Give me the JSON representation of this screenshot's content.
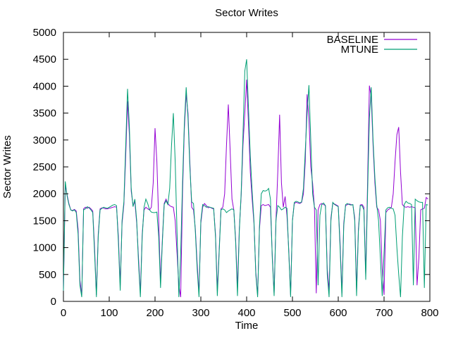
{
  "title": "Sector Writes",
  "chart_data": {
    "type": "line",
    "title": "Sector Writes",
    "xlabel": "Time",
    "ylabel": "Sector Writes",
    "xlim": [
      0,
      800
    ],
    "ylim": [
      0,
      5000
    ],
    "xticks": [
      0,
      100,
      200,
      300,
      400,
      500,
      600,
      700,
      800
    ],
    "yticks": [
      0,
      500,
      1000,
      1500,
      2000,
      2500,
      3000,
      3500,
      4000,
      4500,
      5000
    ],
    "grid": false,
    "legend_position": "top-right-inside",
    "x": [
      0,
      4,
      8,
      12,
      16,
      20,
      24,
      28,
      32,
      36,
      40,
      44,
      48,
      52,
      56,
      60,
      64,
      68,
      72,
      76,
      80,
      84,
      88,
      92,
      96,
      100,
      104,
      108,
      112,
      116,
      120,
      124,
      128,
      132,
      136,
      140,
      144,
      148,
      152,
      156,
      160,
      164,
      168,
      172,
      176,
      180,
      184,
      188,
      192,
      196,
      200,
      204,
      208,
      212,
      216,
      220,
      224,
      228,
      232,
      236,
      240,
      244,
      248,
      252,
      256,
      260,
      264,
      268,
      272,
      276,
      280,
      284,
      288,
      292,
      296,
      300,
      304,
      308,
      312,
      316,
      320,
      324,
      328,
      332,
      336,
      340,
      344,
      348,
      352,
      356,
      360,
      364,
      368,
      372,
      376,
      380,
      384,
      388,
      392,
      396,
      400,
      404,
      408,
      412,
      416,
      420,
      424,
      428,
      432,
      436,
      440,
      444,
      448,
      452,
      456,
      460,
      464,
      468,
      472,
      476,
      480,
      484,
      488,
      492,
      496,
      500,
      504,
      508,
      512,
      516,
      520,
      524,
      528,
      532,
      536,
      540,
      544,
      548,
      552,
      556,
      560,
      564,
      568,
      572,
      576,
      580,
      584,
      588,
      592,
      596,
      600,
      604,
      608,
      612,
      616,
      620,
      624,
      628,
      632,
      636,
      640,
      644,
      648,
      652,
      656,
      660,
      664,
      668,
      672,
      676,
      680,
      684,
      688,
      692,
      696,
      700,
      704,
      708,
      712,
      716,
      720,
      724,
      728,
      732,
      736,
      740,
      744,
      748,
      752,
      756,
      760,
      764,
      768,
      772,
      776,
      780,
      784,
      788,
      792,
      796
    ],
    "series": [
      {
        "name": "BASELINE",
        "color": "#9400d3",
        "values": [
          200,
          2150,
          1980,
          1820,
          1700,
          1690,
          1710,
          1680,
          1350,
          400,
          100,
          1720,
          1750,
          1730,
          1750,
          1720,
          1680,
          1000,
          120,
          1250,
          1720,
          1740,
          1730,
          1720,
          1720,
          1730,
          1740,
          1750,
          1760,
          1750,
          1200,
          300,
          1450,
          1800,
          2700,
          3720,
          3100,
          2050,
          1780,
          1850,
          1450,
          800,
          150,
          1250,
          1700,
          1750,
          1720,
          1700,
          1750,
          2200,
          3220,
          2600,
          1500,
          350,
          1150,
          1820,
          1900,
          1820,
          1780,
          1760,
          1750,
          1500,
          900,
          300,
          80,
          2000,
          3200,
          3850,
          3500,
          2600,
          1750,
          1700,
          1350,
          700,
          150,
          1450,
          1750,
          1820,
          1780,
          1740,
          1750,
          1730,
          1720,
          1250,
          200,
          950,
          1720,
          1750,
          2000,
          2900,
          3660,
          2800,
          1900,
          1700,
          1150,
          250,
          1350,
          1950,
          2900,
          3500,
          4120,
          3300,
          2400,
          1900,
          1450,
          550,
          120,
          1350,
          1780,
          1800,
          1780,
          1790,
          1800,
          1750,
          850,
          150,
          1500,
          2400,
          3470,
          2200,
          1750,
          1950,
          1600,
          950,
          120,
          1500,
          1820,
          1840,
          1830,
          1820,
          1840,
          2000,
          2600,
          3850,
          3400,
          2500,
          2200,
          1750,
          150,
          1700,
          1800,
          1820,
          1800,
          1780,
          600,
          200,
          1550,
          1820,
          1810,
          1790,
          1770,
          1100,
          150,
          1450,
          1780,
          1800,
          1810,
          1800,
          1790,
          1550,
          200,
          1350,
          1790,
          1800,
          1750,
          500,
          2200,
          4010,
          3800,
          2900,
          2200,
          1750,
          1700,
          1500,
          600,
          120,
          1650,
          1700,
          1720,
          1750,
          2000,
          2600,
          3100,
          3240,
          2400,
          1800,
          1760,
          1750,
          1760,
          1750,
          1760,
          1750,
          1740,
          300,
          800,
          1700,
          1720,
          1730,
          1930,
          1900
        ]
      },
      {
        "name": "MTUNE",
        "color": "#009e73",
        "values": [
          200,
          2230,
          1960,
          1800,
          1700,
          1680,
          1700,
          1650,
          1250,
          300,
          80,
          1700,
          1720,
          1760,
          1740,
          1700,
          1650,
          900,
          80,
          1200,
          1700,
          1730,
          1750,
          1740,
          1730,
          1750,
          1770,
          1790,
          1800,
          1780,
          1100,
          200,
          1500,
          1850,
          2900,
          3950,
          3250,
          2100,
          1760,
          1900,
          1500,
          700,
          80,
          1200,
          1750,
          1900,
          1820,
          1700,
          1660,
          1650,
          1650,
          1660,
          1200,
          250,
          1100,
          1800,
          1870,
          1800,
          2100,
          2900,
          3500,
          2600,
          1300,
          80,
          900,
          2200,
          3300,
          3980,
          3400,
          2500,
          1850,
          1820,
          1300,
          600,
          80,
          1500,
          1800,
          1780,
          1750,
          1760,
          1750,
          1740,
          1730,
          1200,
          100,
          900,
          1700,
          1720,
          1700,
          1650,
          1680,
          1700,
          1720,
          1700,
          1100,
          100,
          1300,
          2000,
          3100,
          4280,
          4500,
          3600,
          2700,
          2050,
          1500,
          500,
          80,
          1400,
          2000,
          2060,
          2050,
          2060,
          2100,
          1900,
          800,
          100,
          1500,
          1780,
          1750,
          1700,
          1720,
          1750,
          1730,
          900,
          80,
          1500,
          1840,
          1860,
          1850,
          1830,
          1850,
          2100,
          2800,
          3500,
          4020,
          3000,
          2000,
          1750,
          1700,
          300,
          1600,
          1800,
          1830,
          1780,
          500,
          80,
          1500,
          1840,
          1800,
          1780,
          1760,
          1000,
          80,
          1400,
          1800,
          1820,
          1800,
          1790,
          1800,
          1500,
          100,
          1300,
          1780,
          1780,
          1700,
          400,
          2000,
          3400,
          3980,
          3000,
          2300,
          1800,
          1500,
          800,
          100,
          900,
          1700,
          1740,
          1750,
          1730,
          1720,
          1600,
          1000,
          500,
          80,
          1200,
          1800,
          1860,
          1830,
          1820,
          1800,
          300,
          1900,
          1870,
          1850,
          1840,
          1840,
          250,
          1800,
          1790
        ]
      }
    ]
  }
}
